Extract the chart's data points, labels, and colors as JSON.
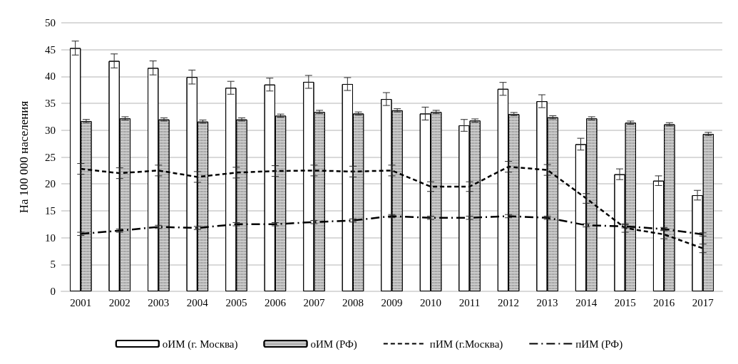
{
  "chart_data": {
    "type": "bar",
    "ylabel": "На 100 000 населения",
    "categories": [
      "2001",
      "2002",
      "2003",
      "2004",
      "2005",
      "2006",
      "2007",
      "2008",
      "2009",
      "2010",
      "2011",
      "2012",
      "2013",
      "2014",
      "2015",
      "2016",
      "2017"
    ],
    "series": [
      {
        "name": "оИМ (г. Москва)",
        "color": "#ffffff",
        "values": [
          45.3,
          42.9,
          41.6,
          39.9,
          37.9,
          38.5,
          39.0,
          38.6,
          35.8,
          33.1,
          30.9,
          37.7,
          35.4,
          27.4,
          21.8,
          20.6,
          17.9
        ],
        "errors": [
          1.3,
          1.3,
          1.3,
          1.3,
          1.2,
          1.2,
          1.2,
          1.2,
          1.2,
          1.2,
          1.1,
          1.2,
          1.2,
          1.1,
          1.0,
          0.9,
          0.9
        ]
      },
      {
        "name": "оИМ (РФ)",
        "color": "#8c8c8c",
        "values": [
          31.7,
          32.2,
          32.0,
          31.6,
          32.0,
          32.7,
          33.4,
          33.1,
          33.7,
          33.4,
          31.8,
          33.0,
          32.4,
          32.2,
          31.4,
          31.1,
          29.3
        ],
        "errors": [
          0.3,
          0.3,
          0.3,
          0.3,
          0.3,
          0.3,
          0.3,
          0.3,
          0.3,
          0.3,
          0.3,
          0.3,
          0.3,
          0.3,
          0.3,
          0.3,
          0.3
        ]
      },
      {
        "name": "пИМ (г.Москва)",
        "type": "line",
        "line_style": "dashed",
        "color": "#000000",
        "values": [
          22.8,
          22.0,
          22.5,
          21.3,
          22.1,
          22.4,
          22.5,
          22.3,
          22.5,
          19.5,
          19.5,
          23.2,
          22.6,
          17.3,
          11.8,
          10.6,
          8.0
        ],
        "errors": [
          1.0,
          1.0,
          1.0,
          1.0,
          1.0,
          1.0,
          1.0,
          1.0,
          1.0,
          0.9,
          0.9,
          1.0,
          1.0,
          0.9,
          0.8,
          0.8,
          0.8
        ]
      },
      {
        "name": "пИМ (РФ)",
        "type": "line",
        "line_style": "dashdot",
        "color": "#000000",
        "values": [
          10.7,
          11.3,
          12.0,
          11.8,
          12.5,
          12.5,
          12.9,
          13.2,
          14.0,
          13.7,
          13.7,
          14.0,
          13.7,
          12.3,
          12.1,
          11.6,
          10.6
        ],
        "errors": [
          0.3,
          0.3,
          0.3,
          0.3,
          0.3,
          0.3,
          0.3,
          0.3,
          0.3,
          0.3,
          0.3,
          0.3,
          0.3,
          0.3,
          0.3,
          0.3,
          0.3
        ]
      }
    ],
    "ylim": [
      0,
      50
    ],
    "yticks": [
      0,
      5,
      10,
      15,
      20,
      25,
      30,
      35,
      40,
      45,
      50
    ],
    "grid": "y",
    "legend": "bottom",
    "marker": "none"
  }
}
